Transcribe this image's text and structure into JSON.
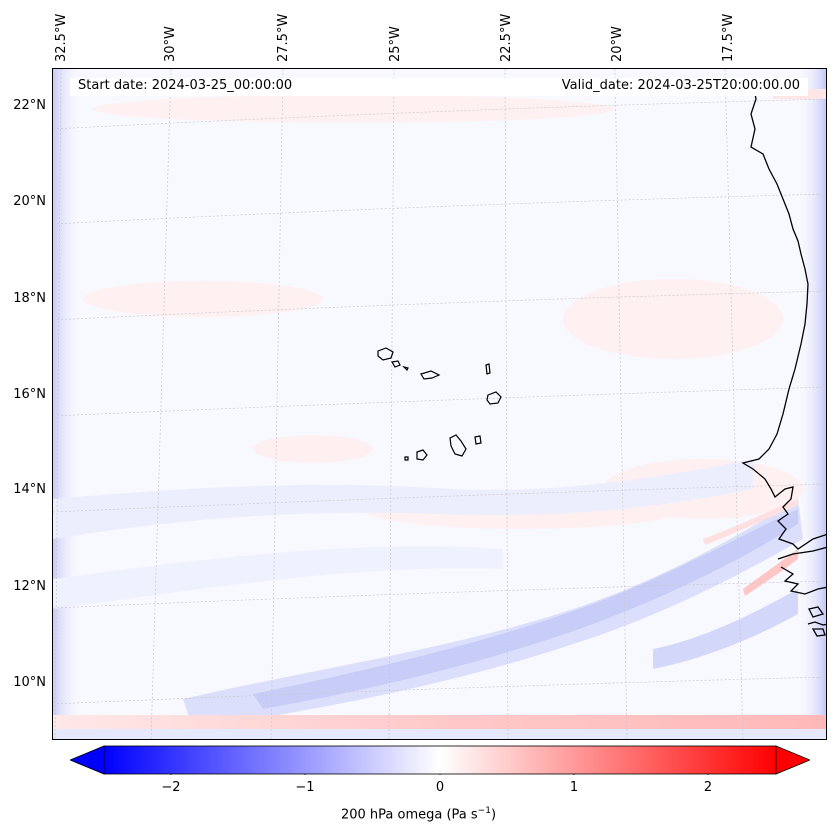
{
  "map": {
    "header": {
      "start_date": "Start date: 2024-03-25_00:00:00",
      "valid_date": "Valid_date: 2024-03-25T20:00:00.00"
    },
    "longitude_labels": [
      "32.5°W",
      "30°W",
      "27.5°W",
      "25°W",
      "22.5°W",
      "20°W",
      "17.5°W"
    ],
    "latitude_labels": [
      "22°N",
      "20°N",
      "18°N",
      "16°N",
      "14°N",
      "12°N",
      "10°N"
    ],
    "field": "200 hPa omega"
  },
  "colorbar": {
    "ticks": [
      "−2",
      "−1",
      "0",
      "1",
      "2"
    ],
    "tick_values": [
      -2,
      -1,
      0,
      1,
      2
    ],
    "min": -2.5,
    "max": 2.5,
    "label": "200 hPa omega (Pa s",
    "label_sup": "−1",
    "label_end": ")",
    "negative_color": "#0000ff",
    "zero_color": "#ffffff",
    "positive_color": "#ff0000"
  }
}
